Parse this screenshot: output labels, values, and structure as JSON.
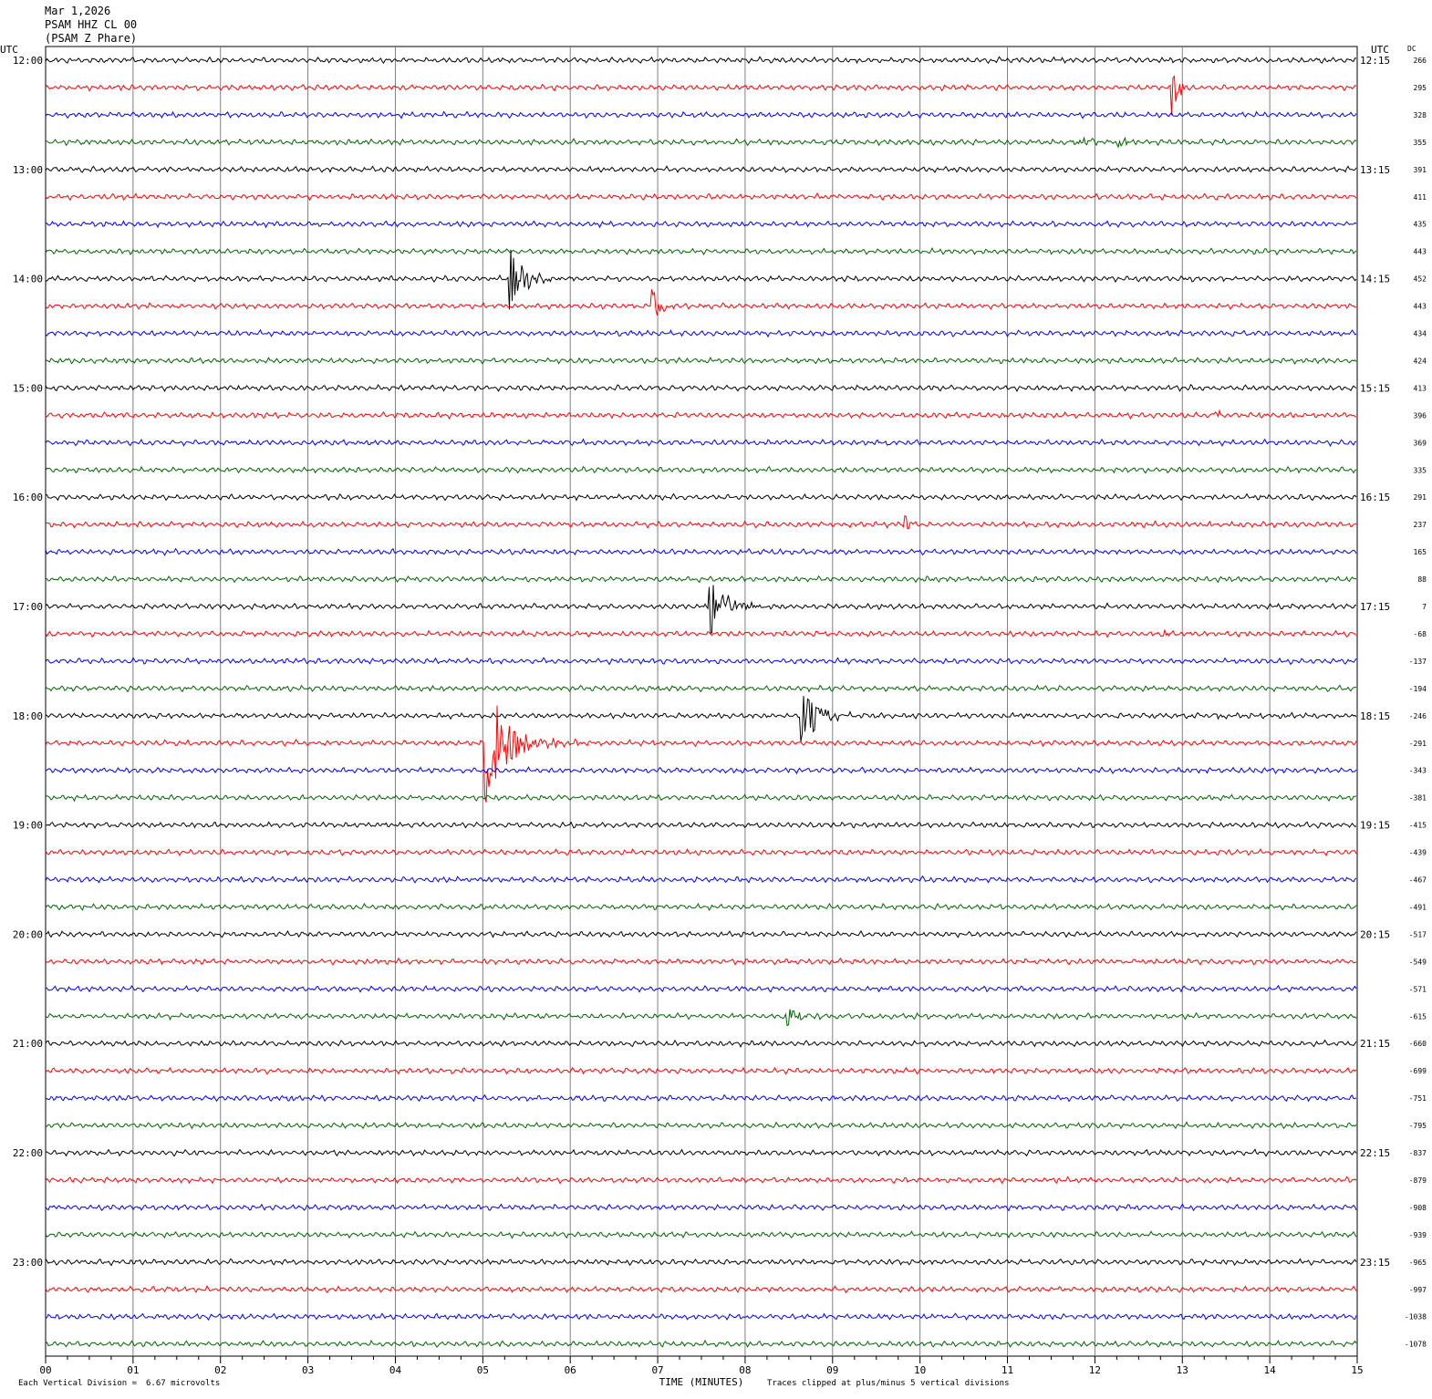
{
  "header": {
    "date": "Mar 1,2026",
    "station": "PSAM HHZ CL 00",
    "name": "(PSAM Z Phare)"
  },
  "left_axis_title": "UTC",
  "right_axis_title": "UTC",
  "dc_title": "DC",
  "xlabel": "TIME (MINUTES)",
  "footer": {
    "scale_label": "Each Vertical Division =",
    "scale_value": "6.67 microvolts",
    "clip_note": "Traces clipped at plus/minus 5 vertical divisions"
  },
  "colors": {
    "trace_cycle": [
      "#000000",
      "#ff0000",
      "#0000ff",
      "#006400"
    ],
    "grid": "#808080"
  },
  "chart_data": {
    "type": "line",
    "title": "PSAM HHZ CL 00",
    "xlim": [
      0,
      15
    ],
    "x_ticks": [
      "00",
      "01",
      "02",
      "03",
      "04",
      "05",
      "06",
      "07",
      "08",
      "09",
      "10",
      "11",
      "12",
      "13",
      "14",
      "15"
    ],
    "rows_per_hour": 4,
    "row_minutes": 15,
    "left_hour_labels": [
      "12:00",
      "13:00",
      "14:00",
      "15:00",
      "16:00",
      "17:00",
      "18:00",
      "19:00",
      "20:00",
      "21:00",
      "22:00",
      "23:00"
    ],
    "right_hour_labels": [
      "12:15",
      "13:15",
      "14:15",
      "15:15",
      "16:15",
      "17:15",
      "18:15",
      "19:15",
      "20:15",
      "21:15",
      "22:15",
      "23:15"
    ],
    "dc_offsets": [
      "266",
      "295",
      "328",
      "355",
      "391",
      "411",
      "435",
      "443",
      "452",
      "443",
      "434",
      "424",
      "413",
      "396",
      "369",
      "335",
      "291",
      "237",
      "165",
      "88",
      "7",
      "-68",
      "-137",
      "-194",
      "-246",
      "-291",
      "-343",
      "-381",
      "-415",
      "-439",
      "-467",
      "-491",
      "-517",
      "-549",
      "-571",
      "-615",
      "-660",
      "-699",
      "-751",
      "-795",
      "-837",
      "-879",
      "-908",
      "-939",
      "-965",
      "-997",
      "-1038",
      "-1078"
    ],
    "events": [
      {
        "row": 1,
        "minute": 12.88,
        "amp": 34,
        "dur": 0.15
      },
      {
        "row": 3,
        "minute": 11.75,
        "amp": 6,
        "dur": 0.5
      },
      {
        "row": 3,
        "minute": 12.25,
        "amp": 5,
        "dur": 0.4
      },
      {
        "row": 8,
        "minute": 5.3,
        "amp": 40,
        "dur": 0.35
      },
      {
        "row": 9,
        "minute": 6.92,
        "amp": 20,
        "dur": 0.3
      },
      {
        "row": 13,
        "minute": 13.38,
        "amp": 10,
        "dur": 0.08
      },
      {
        "row": 14,
        "minute": 9.6,
        "amp": 5,
        "dur": 0.08
      },
      {
        "row": 17,
        "minute": 9.83,
        "amp": 20,
        "dur": 0.08
      },
      {
        "row": 20,
        "minute": 7.58,
        "amp": 38,
        "dur": 0.4
      },
      {
        "row": 21,
        "minute": 12.78,
        "amp": 6,
        "dur": 0.1
      },
      {
        "row": 24,
        "minute": 8.62,
        "amp": 55,
        "dur": 0.35
      },
      {
        "row": 24,
        "minute": 13.38,
        "amp": 6,
        "dur": 0.08
      },
      {
        "row": 25,
        "minute": 5.02,
        "amp": 75,
        "dur": 0.55
      },
      {
        "row": 35,
        "minute": 8.48,
        "amp": 15,
        "dur": 0.25
      },
      {
        "row": 37,
        "minute": 12.73,
        "amp": 6,
        "dur": 0.1
      },
      {
        "row": 38,
        "minute": 2.75,
        "amp": 12,
        "dur": 0.06
      }
    ]
  }
}
